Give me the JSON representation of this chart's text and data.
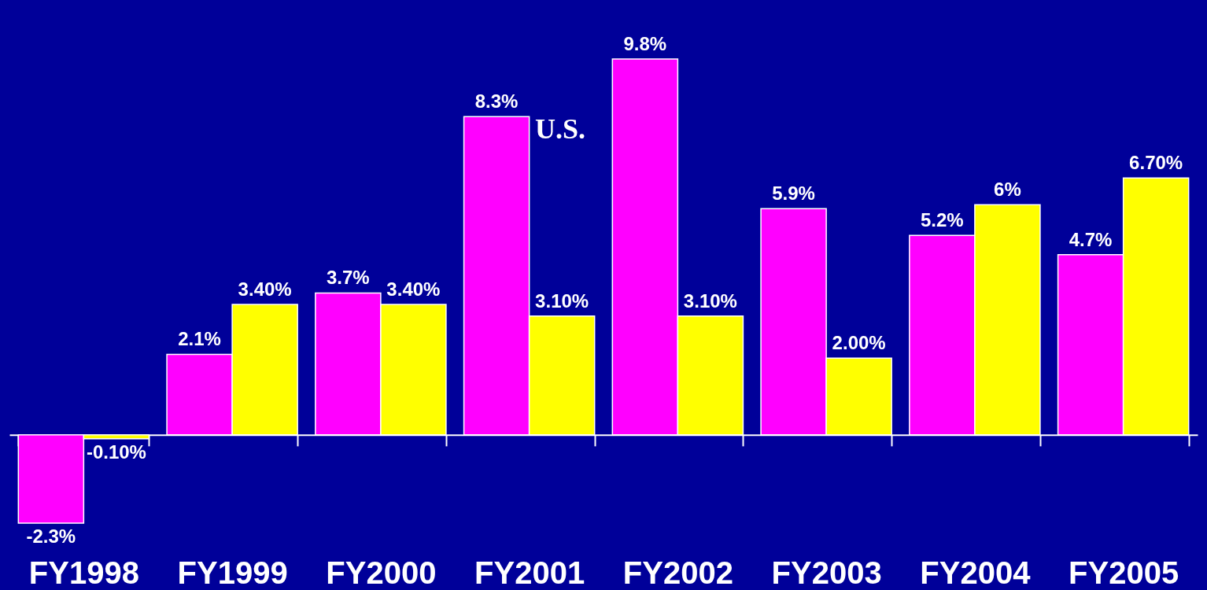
{
  "chart_data": {
    "type": "bar",
    "categories": [
      "FY1998",
      "FY1999",
      "FY2000",
      "FY2001",
      "FY2002",
      "FY2003",
      "FY2004",
      "FY2005"
    ],
    "series": [
      {
        "color": "#ff00ff",
        "values": [
          -2.3,
          2.1,
          3.7,
          8.3,
          9.8,
          5.9,
          5.2,
          4.7
        ],
        "value_labels": [
          "-2.3%",
          "2.1%",
          "3.7%",
          "8.3%",
          "9.8%",
          "5.9%",
          "5.2%",
          "4.7%"
        ]
      },
      {
        "color": "#ffff00",
        "values": [
          -0.1,
          3.4,
          3.4,
          3.1,
          3.1,
          2.0,
          6,
          6.7
        ],
        "value_labels": [
          "-0.10%",
          "3.40%",
          "3.40%",
          "3.10%",
          "3.10%",
          "2.00%",
          "6%",
          "6.70%"
        ]
      }
    ],
    "annotations": [
      "U.S."
    ]
  }
}
